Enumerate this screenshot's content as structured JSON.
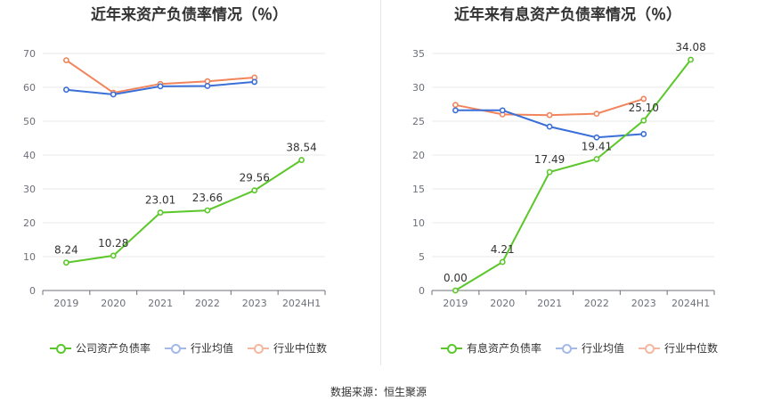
{
  "source": "数据来源：恒生聚源",
  "colors": {
    "company": "#5cc72a",
    "avg": "#3a6fd8",
    "median": "#f2845c",
    "grid": "#e8e8e8",
    "axis": "#6e7079"
  },
  "chart_data": [
    {
      "type": "line",
      "title": "近年来资产负债率情况（％）",
      "categories": [
        "2019",
        "2020",
        "2021",
        "2022",
        "2023",
        "2024H1"
      ],
      "ylim": [
        0,
        70
      ],
      "yticks": [
        0,
        10,
        20,
        30,
        40,
        50,
        60,
        70
      ],
      "grid": true,
      "legend_position": "bottom",
      "series": [
        {
          "name": "公司资产负债率",
          "color": "#5cc72a",
          "values": [
            8.24,
            10.28,
            23.01,
            23.66,
            29.56,
            38.54
          ],
          "labels": [
            "8.24",
            "10.28",
            "23.01",
            "23.66",
            "29.56",
            "38.54"
          ]
        },
        {
          "name": "行业均值",
          "color": "#3a6fd8",
          "values": [
            59.3,
            57.9,
            60.3,
            60.4,
            61.6,
            null
          ]
        },
        {
          "name": "行业中位数",
          "color": "#f2845c",
          "values": [
            68.0,
            58.4,
            61.0,
            61.8,
            62.9,
            null
          ]
        }
      ]
    },
    {
      "type": "line",
      "title": "近年来有息资产负债率情况（％）",
      "categories": [
        "2019",
        "2020",
        "2021",
        "2022",
        "2023",
        "2024H1"
      ],
      "ylim": [
        0,
        35
      ],
      "yticks": [
        0,
        5,
        10,
        15,
        20,
        25,
        30,
        35
      ],
      "grid": true,
      "legend_position": "bottom",
      "series": [
        {
          "name": "有息资产负债率",
          "color": "#5cc72a",
          "values": [
            0.0,
            4.21,
            17.49,
            19.41,
            25.1,
            34.08
          ],
          "labels": [
            "0.00",
            "4.21",
            "17.49",
            "19.41",
            "25.10",
            "34.08"
          ]
        },
        {
          "name": "行业均值",
          "color": "#3a6fd8",
          "values": [
            26.6,
            26.6,
            24.2,
            22.6,
            23.1,
            null
          ]
        },
        {
          "name": "行业中位数",
          "color": "#f2845c",
          "values": [
            27.4,
            26.0,
            25.9,
            26.1,
            28.3,
            null
          ]
        }
      ]
    }
  ]
}
